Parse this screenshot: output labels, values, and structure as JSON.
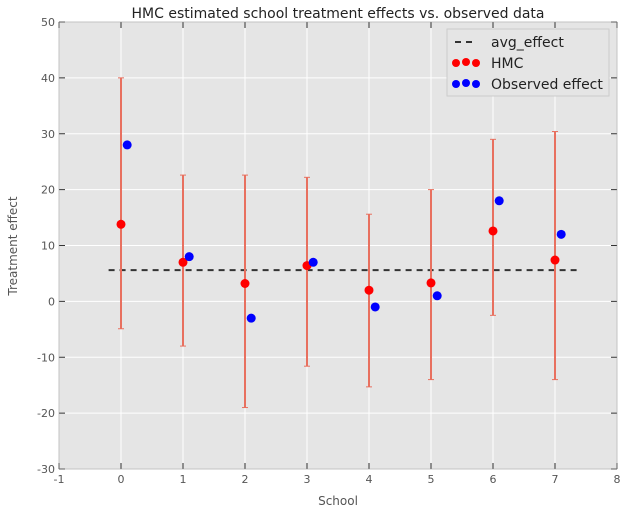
{
  "chart_data": {
    "type": "scatter",
    "title": "HMC estimated school treatment effects vs. observed data",
    "xlabel": "School",
    "ylabel": "Treatment effect",
    "xlim": [
      -1,
      8
    ],
    "ylim": [
      -30,
      50
    ],
    "xticks": [
      -1,
      0,
      1,
      2,
      3,
      4,
      5,
      6,
      7,
      8
    ],
    "yticks": [
      -30,
      -20,
      -10,
      0,
      10,
      20,
      30,
      40,
      50
    ],
    "grid": true,
    "legend_position": "top-right",
    "avg_effect": {
      "name": "avg_effect",
      "value": 5.6,
      "x_range": [
        -0.2,
        7.4
      ],
      "color": "#333333",
      "style": "dashed"
    },
    "series": [
      {
        "name": "HMC",
        "color": "#ff0000",
        "error_color": "#e8705f",
        "x": [
          0,
          1,
          2,
          3,
          4,
          5,
          6,
          7
        ],
        "y": [
          13.8,
          7.0,
          3.2,
          6.4,
          2.0,
          3.3,
          12.6,
          7.4
        ],
        "error_low": [
          -4.9,
          -8.0,
          -19.0,
          -11.6,
          -15.3,
          -14.0,
          -2.5,
          -14.0
        ],
        "error_high": [
          40.0,
          22.6,
          22.6,
          22.2,
          15.6,
          20.0,
          29.0,
          30.4
        ]
      },
      {
        "name": "Observed effect",
        "color": "#0000ff",
        "x": [
          0.1,
          1.1,
          2.1,
          3.1,
          4.1,
          5.1,
          6.1,
          7.1
        ],
        "y": [
          28,
          8,
          -3,
          7,
          -1,
          1,
          18,
          12
        ]
      }
    ]
  }
}
